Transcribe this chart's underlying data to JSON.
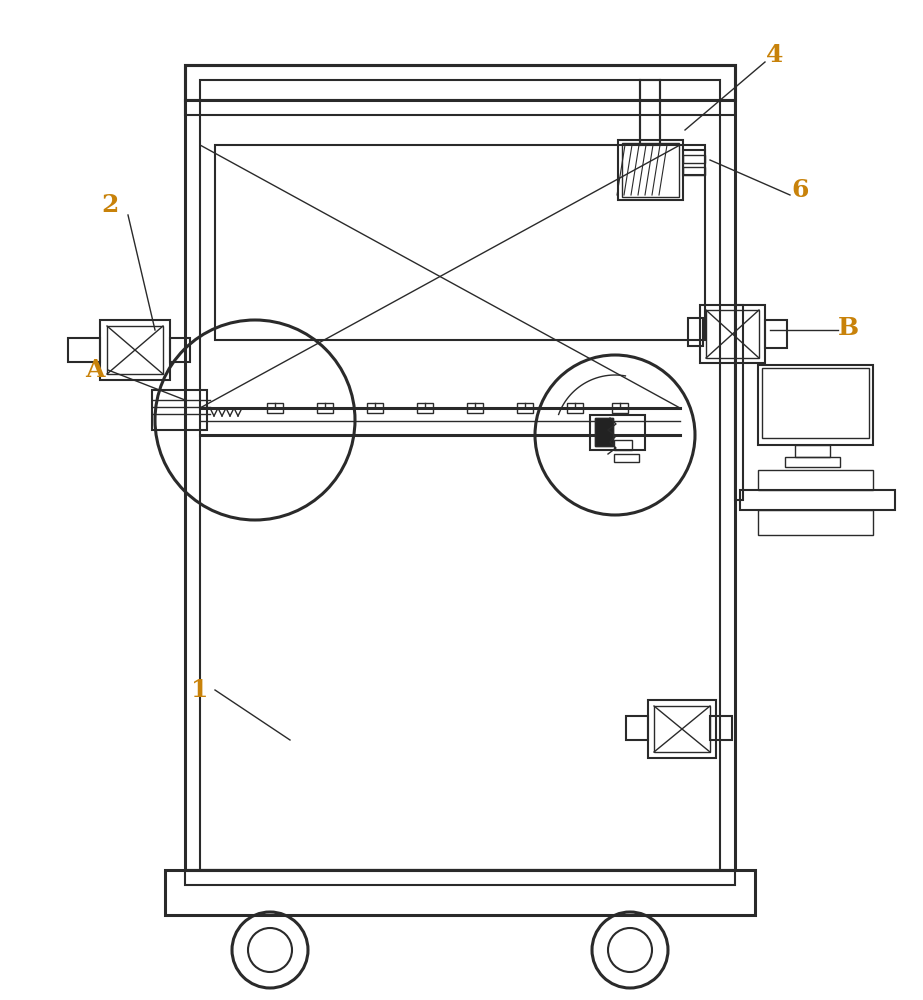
{
  "bg_color": "#ffffff",
  "line_color": "#2a2a2a",
  "label_color": "#c8820a",
  "fig_width": 9.23,
  "fig_height": 10.0,
  "lw_thick": 2.2,
  "lw_mid": 1.5,
  "lw_thin": 1.0
}
